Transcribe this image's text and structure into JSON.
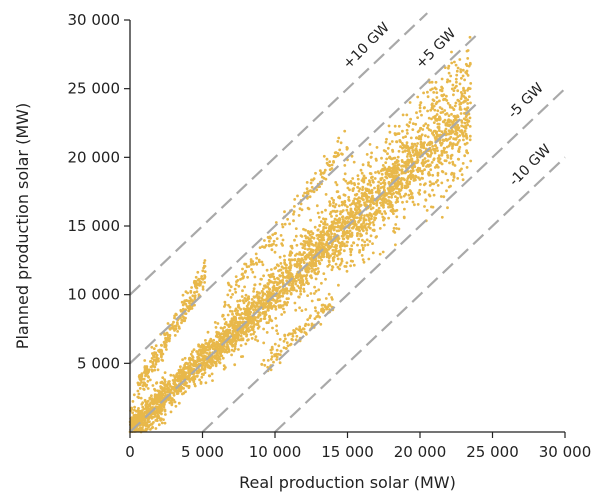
{
  "chart_data": {
    "type": "scatter",
    "xlabel": "Real production solar (MW)",
    "ylabel": "Planned production solar (MW)",
    "xlim": [
      0,
      30000
    ],
    "ylim": [
      0,
      30000
    ],
    "x_ticks": [
      0,
      5000,
      10000,
      15000,
      20000,
      25000,
      30000
    ],
    "x_tick_labels": [
      "0",
      "5 000",
      "10 000",
      "15 000",
      "20 000",
      "25 000",
      "30 000"
    ],
    "y_ticks": [
      5000,
      10000,
      15000,
      20000,
      25000,
      30000
    ],
    "y_tick_labels": [
      "5 000",
      "10 000",
      "15 000",
      "20 000",
      "25 000",
      "30 000"
    ],
    "grid": false,
    "point_color": "#e8b84a",
    "reference_line_color": "#a9a9a9",
    "reference_lines": [
      {
        "offset": 10000,
        "label": "+10 GW"
      },
      {
        "offset": 5000,
        "label": "+5 GW"
      },
      {
        "offset": 0,
        "label": ""
      },
      {
        "offset": -5000,
        "label": "-5 GW"
      },
      {
        "offset": -10000,
        "label": "-10 GW"
      }
    ],
    "point_clusters": [
      {
        "x_range": [
          0,
          23500
        ],
        "relation": "y ≈ x",
        "spread": 2200
      },
      {
        "x_range": [
          500,
          5200
        ],
        "relation": "y ≈ 1.8x + 2500",
        "spread": 1000
      },
      {
        "x_range": [
          6500,
          15000
        ],
        "relation": "y ≈ 1.35x + 1000",
        "spread": 900
      },
      {
        "x_range": [
          9000,
          14000
        ],
        "relation": "y ≈ x - 4500",
        "spread": 600
      }
    ]
  }
}
